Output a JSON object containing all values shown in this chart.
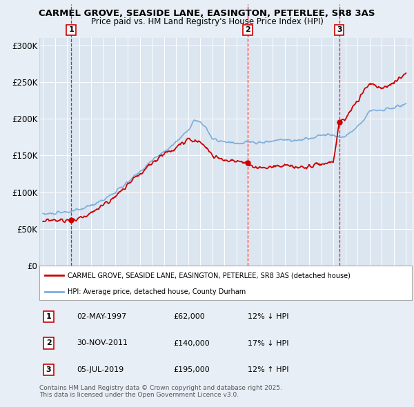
{
  "title1": "CARMEL GROVE, SEASIDE LANE, EASINGTON, PETERLEE, SR8 3AS",
  "title2": "Price paid vs. HM Land Registry's House Price Index (HPI)",
  "background_color": "#e8eef5",
  "plot_bg_color": "#dce6f0",
  "ylim": [
    0,
    310000
  ],
  "yticks": [
    0,
    50000,
    100000,
    150000,
    200000,
    250000,
    300000
  ],
  "ytick_labels": [
    "£0",
    "£50K",
    "£100K",
    "£150K",
    "£200K",
    "£250K",
    "£300K"
  ],
  "xlim_start": 1994.7,
  "xlim_end": 2025.5,
  "sale_dates": [
    1997.33,
    2011.92,
    2019.5
  ],
  "sale_prices": [
    62000,
    140000,
    195000
  ],
  "sale_labels": [
    "1",
    "2",
    "3"
  ],
  "red_line_color": "#cc0000",
  "blue_line_color": "#7aaddb",
  "legend_red_label": "CARMEL GROVE, SEASIDE LANE, EASINGTON, PETERLEE, SR8 3AS (detached house)",
  "legend_blue_label": "HPI: Average price, detached house, County Durham",
  "table_entries": [
    {
      "num": "1",
      "date": "02-MAY-1997",
      "price": "£62,000",
      "hpi": "12% ↓ HPI"
    },
    {
      "num": "2",
      "date": "30-NOV-2011",
      "price": "£140,000",
      "hpi": "17% ↓ HPI"
    },
    {
      "num": "3",
      "date": "05-JUL-2019",
      "price": "£195,000",
      "hpi": "12% ↑ HPI"
    }
  ],
  "footnote": "Contains HM Land Registry data © Crown copyright and database right 2025.\nThis data is licensed under the Open Government Licence v3.0."
}
